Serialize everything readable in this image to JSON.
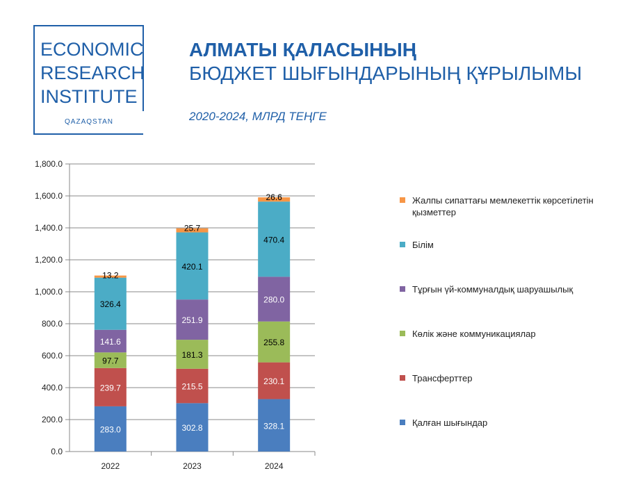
{
  "logo": {
    "lines": [
      "ECONOMIC",
      "RESEARCH",
      "INSTITUTE"
    ],
    "sub": "QAZAQSTAN"
  },
  "header": {
    "title_line1": "АЛМАТЫ ҚАЛАСЫНЫҢ",
    "title_line2": "БЮДЖЕТ ШЫҒЫНДАРЫНЫҢ ҚҰРЫЛЫМЫ",
    "subtitle": "2020-2024, МЛРД ТЕҢГЕ"
  },
  "chart_data": {
    "type": "bar",
    "stacked": true,
    "categories": [
      "2022",
      "2023",
      "2024"
    ],
    "ylim": [
      0,
      1800
    ],
    "yticks": [
      "0.0",
      "200.0",
      "400.0",
      "600.0",
      "800.0",
      "1,000.0",
      "1,200.0",
      "1,400.0",
      "1,600.0",
      "1,800.0"
    ],
    "grid": true,
    "legend_position": "right",
    "series": [
      {
        "name": "Қалған шығындар",
        "color": "#4a7ebf",
        "label_color": "#ffffff",
        "values": [
          283.0,
          302.8,
          328.1
        ],
        "labels": [
          "283.0",
          "302.8",
          "328.1"
        ]
      },
      {
        "name": "Трансферттер",
        "color": "#c0504d",
        "label_color": "#ffffff",
        "values": [
          239.7,
          215.5,
          230.1
        ],
        "labels": [
          "239.7",
          "215.5",
          "230.1"
        ]
      },
      {
        "name": "Көлік және коммуникациялар",
        "color": "#9bbb59",
        "label_color": "#000000",
        "values": [
          97.7,
          181.3,
          255.8
        ],
        "labels": [
          "97.7",
          "181.3",
          "255.8"
        ]
      },
      {
        "name": "Тұрғын үй-коммуналдық шаруашылық",
        "color": "#8064a2",
        "label_color": "#ffffff",
        "values": [
          141.6,
          251.9,
          280.0
        ],
        "labels": [
          "141.6",
          "251.9",
          "280.0"
        ]
      },
      {
        "name": "Білім",
        "color": "#4bacc6",
        "label_color": "#000000",
        "values": [
          326.4,
          420.1,
          470.4
        ],
        "labels": [
          "326.4",
          "420.1",
          "470.4"
        ]
      },
      {
        "name": "Жалпы сипаттағы мемлекеттік көрсетілетін қызметтер",
        "color": "#f79646",
        "label_color": "#000000",
        "values": [
          13.2,
          25.7,
          26.6
        ],
        "labels": [
          "13.2",
          "25.7",
          "26.6"
        ]
      }
    ]
  }
}
